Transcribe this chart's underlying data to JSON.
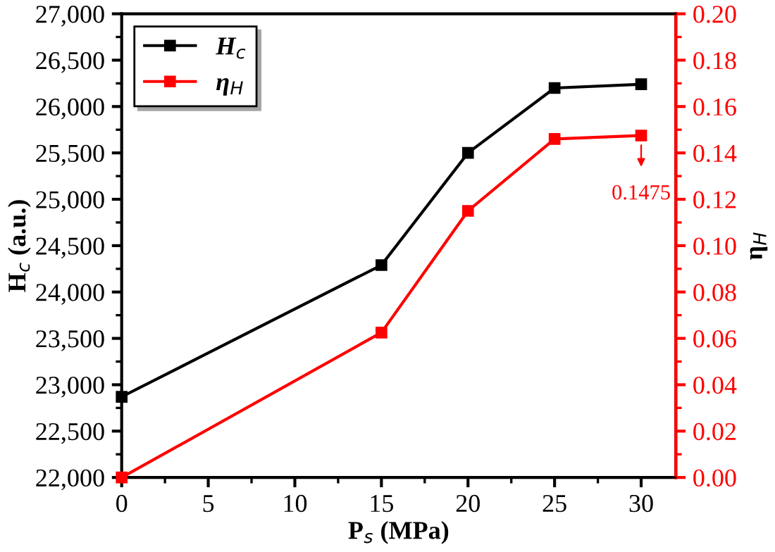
{
  "chart_data": {
    "type": "line",
    "xlabel": "P$_{s}$ (MPa)",
    "ylabel": "H$_{c}$ (a.u.)",
    "y2label": "η$_{H}$",
    "x": [
      0,
      15,
      20,
      25,
      30
    ],
    "series": [
      {
        "name": "H$_{c}$",
        "color": "#000000",
        "values": [
          22870,
          24290,
          25500,
          26200,
          26240
        ]
      },
      {
        "name": "η$_{H}$",
        "color": "#ff0000",
        "axis": "y2",
        "values": [
          0.0,
          0.0625,
          0.115,
          0.146,
          0.1475
        ]
      }
    ],
    "xlim": [
      0,
      32
    ],
    "xticks": [
      0,
      5,
      10,
      15,
      20,
      25,
      30
    ],
    "ylim": [
      22000,
      27000
    ],
    "yticks": [
      {
        "value": 22000,
        "label": "22,000"
      },
      {
        "value": 22500,
        "label": "22,500"
      },
      {
        "value": 23000,
        "label": "23,000"
      },
      {
        "value": 23500,
        "label": "23,500"
      },
      {
        "value": 24000,
        "label": "24,000"
      },
      {
        "value": 24500,
        "label": "24,500"
      },
      {
        "value": 25000,
        "label": "25,000"
      },
      {
        "value": 25500,
        "label": "25,500"
      },
      {
        "value": 26000,
        "label": "26,000"
      },
      {
        "value": 26500,
        "label": "26,500"
      },
      {
        "value": 27000,
        "label": "27,000"
      }
    ],
    "y2lim": [
      0,
      0.2
    ],
    "y2ticks": [
      {
        "value": 0,
        "label": "0.00"
      },
      {
        "value": 0.02,
        "label": "0.02"
      },
      {
        "value": 0.04,
        "label": "0.04"
      },
      {
        "value": 0.06,
        "label": "0.06"
      },
      {
        "value": 0.08,
        "label": "0.08"
      },
      {
        "value": 0.1,
        "label": "0.10"
      },
      {
        "value": 0.12,
        "label": "0.12"
      },
      {
        "value": 0.14,
        "label": "0.14"
      },
      {
        "value": 0.16,
        "label": "0.16"
      },
      {
        "value": 0.18,
        "label": "0.18"
      },
      {
        "value": 0.2,
        "label": "0.20"
      }
    ],
    "annotations": [
      "0.1475"
    ],
    "legend": "top left",
    "marker": "square",
    "line_style": "solid",
    "grid": false
  }
}
